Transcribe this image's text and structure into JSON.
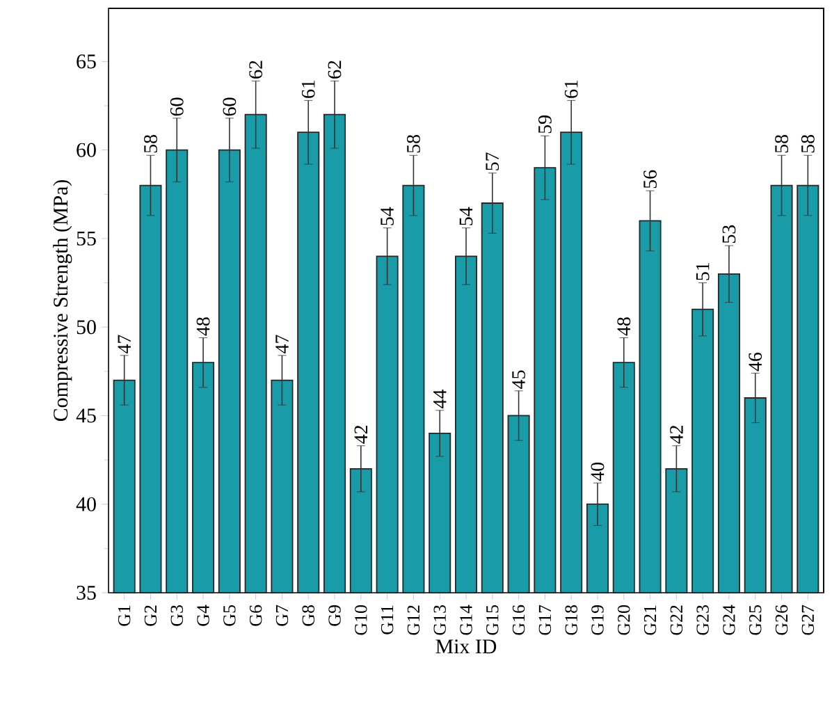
{
  "chart_data": {
    "type": "bar",
    "xlabel": "Mix ID",
    "ylabel": "Compressive Strength (MPa)",
    "categories": [
      "G1",
      "G2",
      "G3",
      "G4",
      "G5",
      "G6",
      "G7",
      "G8",
      "G9",
      "G10",
      "G11",
      "G12",
      "G13",
      "G14",
      "G15",
      "G16",
      "G17",
      "G18",
      "G19",
      "G20",
      "G21",
      "G22",
      "G23",
      "G24",
      "G25",
      "G26",
      "G27"
    ],
    "values": [
      47,
      58,
      60,
      48,
      60,
      62,
      47,
      61,
      62,
      42,
      54,
      58,
      44,
      54,
      57,
      45,
      59,
      61,
      40,
      48,
      56,
      42,
      51,
      53,
      46,
      58,
      58
    ],
    "errors": [
      1.4,
      1.7,
      1.8,
      1.4,
      1.8,
      1.9,
      1.4,
      1.8,
      1.9,
      1.3,
      1.6,
      1.7,
      1.3,
      1.6,
      1.7,
      1.4,
      1.8,
      1.8,
      1.2,
      1.4,
      1.7,
      1.3,
      1.5,
      1.6,
      1.4,
      1.7,
      1.7
    ],
    "color": "#1a9ba8",
    "data_labels": true,
    "ylim": [
      35,
      68
    ],
    "yticks": [
      35,
      40,
      45,
      50,
      55,
      60,
      65
    ]
  }
}
